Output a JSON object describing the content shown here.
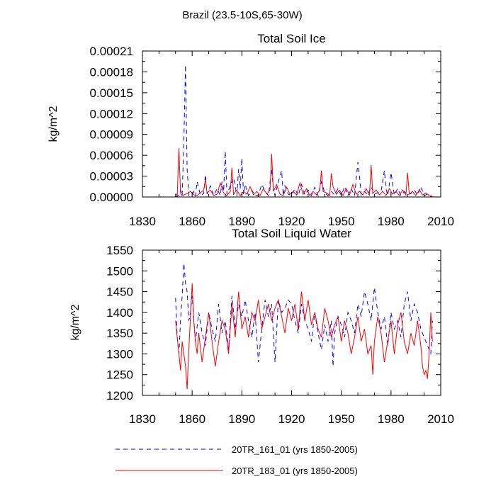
{
  "suptitle": "Brazil (23.5-10S,65-30W)",
  "colors": {
    "series1": "#0000ff",
    "series2": "#ff0000",
    "axis": "#000000"
  },
  "legend": [
    {
      "label": "20TR_161_01 (yrs 1850-2005)",
      "color": "#0000ff",
      "style": "dashed"
    },
    {
      "label": "20TR_183_01 (yrs 1850-2005)",
      "color": "#ff0000",
      "style": "solid"
    }
  ],
  "chart_data": [
    {
      "type": "line",
      "title": "Total Soil Ice",
      "xlabel": "",
      "ylabel": "kg/m^2",
      "xlim": [
        1830,
        2010
      ],
      "ylim": [
        0,
        0.00021
      ],
      "xticks": [
        1830,
        1860,
        1890,
        1920,
        1950,
        1980,
        2010
      ],
      "yticks": [
        0,
        3e-05,
        6e-05,
        9e-05,
        0.00012,
        0.00015,
        0.00018,
        0.00021
      ],
      "ytick_labels": [
        "0.00000",
        "0.00003",
        "0.00006",
        "0.00009",
        "0.00012",
        "0.00015",
        "0.00018",
        "0.00021"
      ],
      "grid": false,
      "series": [
        {
          "name": "20TR_161_01 (yrs 1850-2005)",
          "x": [
            1850,
            1851,
            1852,
            1853,
            1854,
            1855,
            1856,
            1857,
            1858,
            1860,
            1861,
            1862,
            1863,
            1865,
            1867,
            1868,
            1869,
            1871,
            1873,
            1875,
            1877,
            1878,
            1879,
            1880,
            1881,
            1883,
            1885,
            1887,
            1888,
            1889,
            1890,
            1891,
            1892,
            1894,
            1896,
            1898,
            1900,
            1902,
            1904,
            1906,
            1908,
            1909,
            1910,
            1912,
            1914,
            1915,
            1916,
            1918,
            1920,
            1922,
            1924,
            1926,
            1928,
            1930,
            1932,
            1934,
            1936,
            1938,
            1940,
            1942,
            1944,
            1946,
            1948,
            1950,
            1952,
            1954,
            1956,
            1958,
            1960,
            1961,
            1962,
            1964,
            1966,
            1968,
            1970,
            1972,
            1974,
            1976,
            1977,
            1978,
            1980,
            1982,
            1984,
            1986,
            1988,
            1990,
            1992,
            1994,
            1996,
            1998,
            2000,
            2002,
            2004,
            2005
          ],
          "values": [
            0,
            1e-06,
            2e-06,
            1e-05,
            2e-06,
            8e-05,
            0.00019,
            4e-05,
            2e-06,
            3e-06,
            8e-06,
            1e-06,
            2.2e-05,
            2e-06,
            5e-06,
            3.2e-05,
            4e-06,
            1.6e-05,
            2e-06,
            1.2e-05,
            2e-06,
            2.2e-05,
            8e-06,
            6.6e-05,
            4e-06,
            1.6e-05,
            2.8e-05,
            2e-06,
            4e-05,
            1.2e-05,
            5.6e-05,
            4e-06,
            1.8e-05,
            2e-06,
            1e-05,
            2e-06,
            3e-06,
            1.8e-05,
            8e-06,
            2e-06,
            4e-05,
            1e-05,
            2e-06,
            2.2e-05,
            3.8e-05,
            2e-06,
            1.6e-05,
            4e-06,
            2e-06,
            1.2e-05,
            2e-06,
            1.8e-05,
            3e-06,
            1e-05,
            2e-06,
            1.4e-05,
            2e-06,
            2.2e-05,
            6e-06,
            2e-06,
            8e-06,
            3e-06,
            1.2e-05,
            2e-06,
            1.5e-05,
            2e-06,
            1.2e-05,
            2e-06,
            5e-05,
            3e-05,
            3e-06,
            8e-06,
            3e-06,
            1.5e-05,
            4e-06,
            6e-06,
            8e-06,
            3.8e-05,
            1.2e-05,
            2e-06,
            3.5e-05,
            3e-06,
            1.2e-05,
            2e-06,
            8e-06,
            3e-06,
            5e-06,
            1e-05,
            3e-06,
            1.5e-05,
            2e-06,
            4e-06,
            1e-06,
            0
          ]
        },
        {
          "name": "20TR_183_01 (yrs 1850-2005)",
          "x": [
            1850,
            1851,
            1852,
            1853,
            1854,
            1855,
            1857,
            1859,
            1861,
            1863,
            1865,
            1867,
            1868,
            1869,
            1871,
            1873,
            1875,
            1877,
            1879,
            1881,
            1883,
            1884,
            1885,
            1887,
            1889,
            1891,
            1893,
            1895,
            1897,
            1899,
            1901,
            1903,
            1905,
            1907,
            1908,
            1909,
            1911,
            1913,
            1915,
            1917,
            1919,
            1921,
            1923,
            1925,
            1927,
            1929,
            1931,
            1933,
            1935,
            1937,
            1938,
            1939,
            1941,
            1943,
            1944,
            1945,
            1947,
            1949,
            1951,
            1953,
            1955,
            1957,
            1959,
            1961,
            1963,
            1965,
            1967,
            1968,
            1969,
            1971,
            1973,
            1975,
            1977,
            1979,
            1981,
            1983,
            1985,
            1987,
            1989,
            1990,
            1991,
            1993,
            1995,
            1997,
            1999,
            2001,
            2003,
            2005
          ],
          "values": [
            5e-06,
            2e-06,
            7e-05,
            5e-06,
            2e-06,
            3e-06,
            5e-06,
            8e-06,
            3e-06,
            2e-06,
            6e-06,
            1e-05,
            2.5e-05,
            6e-06,
            1e-05,
            2e-06,
            4e-06,
            2e-05,
            6e-06,
            2e-06,
            8e-06,
            4.2e-05,
            4e-06,
            1e-05,
            2e-06,
            8e-06,
            4e-06,
            1.5e-05,
            3e-06,
            8e-06,
            2e-06,
            1.2e-05,
            4e-06,
            1e-05,
            6.2e-05,
            8e-06,
            1.8e-05,
            4e-06,
            2e-06,
            1.4e-05,
            4e-06,
            8e-06,
            3e-06,
            2e-05,
            4e-06,
            1.2e-05,
            2e-06,
            8e-06,
            3e-06,
            1e-05,
            3.8e-05,
            8e-06,
            6e-06,
            2e-06,
            3.4e-05,
            1.5e-05,
            4e-06,
            1e-05,
            2e-06,
            1.2e-05,
            3e-06,
            1.8e-05,
            4e-06,
            8e-06,
            3e-06,
            1.2e-05,
            2e-06,
            4.6e-05,
            5e-06,
            1e-05,
            3e-06,
            8e-06,
            2e-06,
            1.2e-05,
            4e-06,
            8e-06,
            2e-06,
            1e-05,
            3e-06,
            3.5e-05,
            4e-06,
            8e-06,
            2e-06,
            1e-05,
            3e-06,
            6e-06,
            2e-06,
            1e-06
          ]
        }
      ]
    },
    {
      "type": "line",
      "title": "Total Soil Liquid Water",
      "xlabel": "",
      "ylabel": "kg/m^2",
      "xlim": [
        1830,
        2010
      ],
      "ylim": [
        1200,
        1550
      ],
      "xticks": [
        1830,
        1860,
        1890,
        1920,
        1950,
        1980,
        2010
      ],
      "yticks": [
        1200,
        1250,
        1300,
        1350,
        1400,
        1450,
        1500,
        1550
      ],
      "ytick_labels": [
        "1200",
        "1250",
        "1300",
        "1350",
        "1400",
        "1450",
        "1500",
        "1550"
      ],
      "grid": false,
      "series": [
        {
          "name": "20TR_161_01 (yrs 1850-2005)",
          "x": [
            1850,
            1851,
            1852,
            1853,
            1854,
            1855,
            1856,
            1857,
            1858,
            1859,
            1860,
            1862,
            1864,
            1866,
            1868,
            1870,
            1872,
            1874,
            1876,
            1878,
            1880,
            1882,
            1884,
            1886,
            1888,
            1890,
            1892,
            1894,
            1896,
            1898,
            1900,
            1902,
            1904,
            1906,
            1908,
            1910,
            1912,
            1914,
            1916,
            1918,
            1920,
            1922,
            1924,
            1926,
            1928,
            1930,
            1932,
            1934,
            1936,
            1938,
            1940,
            1942,
            1944,
            1945,
            1946,
            1948,
            1950,
            1952,
            1954,
            1956,
            1958,
            1960,
            1962,
            1964,
            1966,
            1968,
            1970,
            1972,
            1974,
            1976,
            1978,
            1980,
            1982,
            1984,
            1986,
            1988,
            1990,
            1992,
            1994,
            1996,
            1998,
            2000,
            2002,
            2004,
            2005
          ],
          "values": [
            1435,
            1340,
            1300,
            1380,
            1440,
            1518,
            1470,
            1450,
            1380,
            1400,
            1440,
            1330,
            1400,
            1350,
            1320,
            1400,
            1360,
            1330,
            1420,
            1350,
            1380,
            1310,
            1440,
            1360,
            1420,
            1390,
            1430,
            1380,
            1340,
            1400,
            1280,
            1360,
            1430,
            1390,
            1420,
            1280,
            1430,
            1400,
            1410,
            1430,
            1420,
            1380,
            1350,
            1420,
            1380,
            1360,
            1330,
            1400,
            1350,
            1310,
            1370,
            1330,
            1380,
            1270,
            1350,
            1390,
            1370,
            1340,
            1400,
            1380,
            1350,
            1420,
            1390,
            1450,
            1420,
            1380,
            1460,
            1400,
            1360,
            1390,
            1320,
            1400,
            1360,
            1380,
            1340,
            1420,
            1450,
            1380,
            1420,
            1400,
            1360,
            1340,
            1320,
            1300,
            1380
          ]
        },
        {
          "name": "20TR_183_01 (yrs 1850-2005)",
          "x": [
            1850,
            1851,
            1852,
            1853,
            1854,
            1855,
            1856,
            1857,
            1858,
            1859,
            1860,
            1861,
            1862,
            1863,
            1864,
            1866,
            1868,
            1870,
            1872,
            1874,
            1876,
            1878,
            1880,
            1882,
            1884,
            1886,
            1888,
            1890,
            1892,
            1894,
            1896,
            1898,
            1900,
            1902,
            1904,
            1906,
            1908,
            1910,
            1912,
            1914,
            1916,
            1918,
            1920,
            1922,
            1924,
            1926,
            1928,
            1930,
            1932,
            1934,
            1936,
            1938,
            1940,
            1942,
            1944,
            1946,
            1948,
            1950,
            1952,
            1954,
            1956,
            1958,
            1960,
            1962,
            1964,
            1966,
            1968,
            1969,
            1970,
            1972,
            1974,
            1976,
            1978,
            1980,
            1982,
            1984,
            1986,
            1988,
            1990,
            1992,
            1994,
            1996,
            1998,
            1999,
            2000,
            2001,
            2002,
            2003,
            2004,
            2005
          ],
          "values": [
            1380,
            1340,
            1300,
            1260,
            1330,
            1300,
            1270,
            1215,
            1310,
            1390,
            1470,
            1380,
            1330,
            1300,
            1350,
            1280,
            1340,
            1400,
            1330,
            1270,
            1330,
            1380,
            1360,
            1300,
            1420,
            1340,
            1450,
            1360,
            1390,
            1340,
            1400,
            1380,
            1430,
            1360,
            1390,
            1420,
            1380,
            1410,
            1430,
            1390,
            1350,
            1410,
            1380,
            1420,
            1360,
            1450,
            1380,
            1430,
            1370,
            1400,
            1360,
            1340,
            1410,
            1380,
            1340,
            1370,
            1390,
            1330,
            1380,
            1350,
            1300,
            1340,
            1390,
            1330,
            1360,
            1300,
            1320,
            1250,
            1330,
            1390,
            1350,
            1280,
            1330,
            1380,
            1300,
            1370,
            1400,
            1330,
            1300,
            1350,
            1320,
            1380,
            1320,
            1270,
            1250,
            1260,
            1240,
            1300,
            1400,
            1330
          ]
        }
      ]
    }
  ]
}
